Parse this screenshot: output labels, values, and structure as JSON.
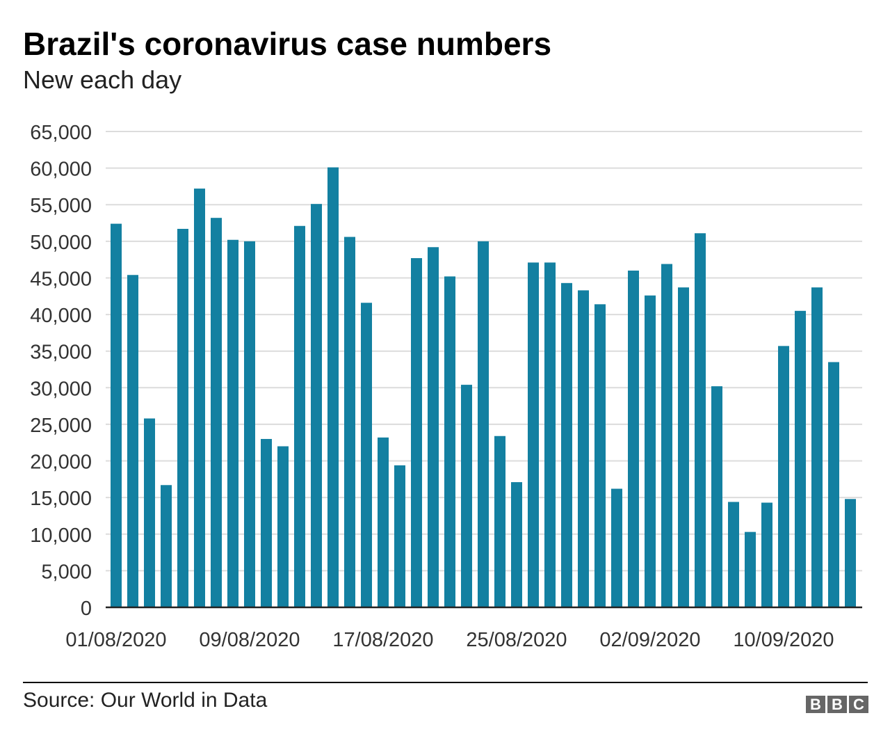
{
  "title": "Brazil's coronavirus case numbers",
  "subtitle": "New each day",
  "source": "Source: Our World in Data",
  "logo": "BBC",
  "chart_data": {
    "type": "bar",
    "title": "Brazil's coronavirus case numbers",
    "subtitle": "New each day",
    "xlabel": "",
    "ylabel": "",
    "ylim": [
      0,
      65000
    ],
    "yticks": [
      0,
      5000,
      10000,
      15000,
      20000,
      25000,
      30000,
      35000,
      40000,
      45000,
      50000,
      55000,
      60000,
      65000
    ],
    "ytick_labels": [
      "0",
      "5,000",
      "10,000",
      "15,000",
      "20,000",
      "25,000",
      "30,000",
      "35,000",
      "40,000",
      "45,000",
      "50,000",
      "55,000",
      "60,000",
      "65,000"
    ],
    "xtick_labels": [
      "01/08/2020",
      "09/08/2020",
      "17/08/2020",
      "25/08/2020",
      "02/09/2020",
      "10/09/2020"
    ],
    "grid": "horizontal",
    "color": "#1380a1",
    "categories": [
      "01/08/2020",
      "02/08/2020",
      "03/08/2020",
      "04/08/2020",
      "05/08/2020",
      "06/08/2020",
      "07/08/2020",
      "08/08/2020",
      "09/08/2020",
      "10/08/2020",
      "11/08/2020",
      "12/08/2020",
      "13/08/2020",
      "14/08/2020",
      "15/08/2020",
      "16/08/2020",
      "17/08/2020",
      "18/08/2020",
      "19/08/2020",
      "20/08/2020",
      "21/08/2020",
      "22/08/2020",
      "23/08/2020",
      "24/08/2020",
      "25/08/2020",
      "26/08/2020",
      "27/08/2020",
      "28/08/2020",
      "29/08/2020",
      "30/08/2020",
      "31/08/2020",
      "01/09/2020",
      "02/09/2020",
      "03/09/2020",
      "04/09/2020",
      "05/09/2020",
      "06/09/2020",
      "07/09/2020",
      "08/09/2020",
      "09/09/2020",
      "10/09/2020",
      "11/09/2020",
      "12/09/2020",
      "13/09/2020",
      "14/09/2020"
    ],
    "values": [
      52400,
      45400,
      25800,
      16700,
      51700,
      57200,
      53200,
      50200,
      50000,
      23000,
      22000,
      52100,
      55100,
      60100,
      50600,
      41600,
      23200,
      19400,
      47700,
      49200,
      45200,
      30400,
      50000,
      23400,
      17100,
      47100,
      47100,
      44300,
      43300,
      41400,
      16200,
      46000,
      42600,
      46900,
      43700,
      51100,
      30200,
      14400,
      10300,
      14300,
      35700,
      40500,
      43700,
      33500,
      14800
    ]
  }
}
